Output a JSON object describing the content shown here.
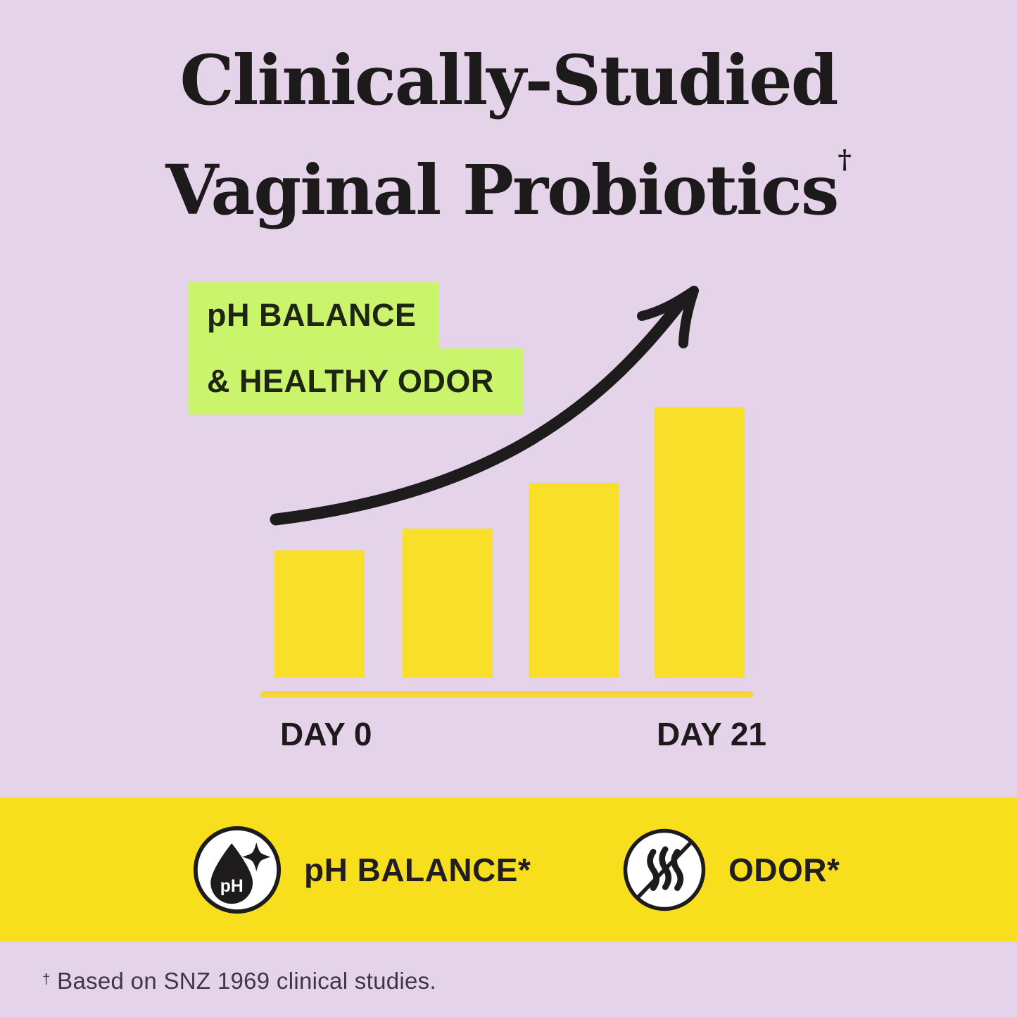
{
  "palette": {
    "background_lavender": "#E5D3EA",
    "bar_yellow": "#F9DE2A",
    "baseline_yellow": "#F5D737",
    "banner_yellow": "#F8DF1E",
    "highlight_green": "#CBF46D",
    "ink_black": "#1D1A1B",
    "footnote_gray": "#3E3744",
    "icon_white": "#FFFFFF"
  },
  "title": {
    "line1": "Clinically-Studied",
    "line2": "Vaginal Probiotics",
    "dagger": "†"
  },
  "highlight": {
    "line1": "pH BALANCE",
    "line2": "& HEALTHY ODOR"
  },
  "chart_data": {
    "type": "bar",
    "categories": [
      "DAY 0",
      "",
      "",
      "DAY 21"
    ],
    "values": [
      47,
      55,
      72,
      100
    ],
    "values_note": "no numeric axis shown; values are relative bar heights as % of tallest bar",
    "title": "pH BALANCE & HEALTHY ODOR",
    "xlabel": "",
    "ylabel": "",
    "ylim": [
      0,
      100
    ],
    "grid": false,
    "legend": false,
    "bar_color": "#F9DE2A",
    "baseline_color": "#F5D737",
    "x_tick_labels_visible": [
      "DAY 0",
      "DAY 21"
    ],
    "annotations": [
      {
        "type": "trend-arrow",
        "direction": "up-right",
        "color": "#1D1B1C"
      }
    ]
  },
  "axis": {
    "day0": "DAY 0",
    "day21": "DAY 21"
  },
  "banner": {
    "features": [
      {
        "icon": "ph-droplet-sparkle-icon",
        "label": "pH BALANCE*"
      },
      {
        "icon": "no-odor-waves-icon",
        "label": "ODOR*"
      }
    ]
  },
  "icons": {
    "ph_droplet_text": "pH"
  },
  "footnote": {
    "dagger": "†",
    "text": "Based on SNZ 1969 clinical studies."
  }
}
